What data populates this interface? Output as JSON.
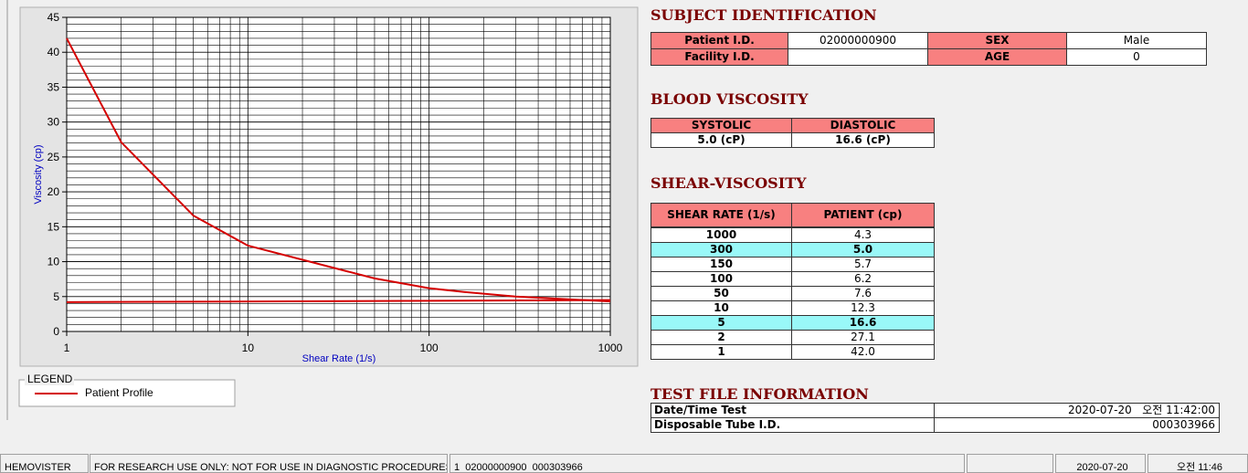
{
  "chart_data": {
    "type": "line",
    "x_label": "Shear Rate (1/s)",
    "y_label": "Viscosity (cp)",
    "x_log": true,
    "xlim": [
      1,
      1000
    ],
    "xticks": [
      1,
      10,
      100,
      1000
    ],
    "ylim": [
      0,
      45
    ],
    "yticks": [
      0,
      5,
      10,
      15,
      20,
      25,
      30,
      35,
      40,
      45
    ],
    "grid": true,
    "legend_title": "LEGEND",
    "series": [
      {
        "name": "Patient Profile",
        "color": "#d40000",
        "x": [
          1,
          2,
          5,
          10,
          50,
          100,
          150,
          300,
          1000
        ],
        "values": [
          42.0,
          27.1,
          16.6,
          12.3,
          7.6,
          6.2,
          5.7,
          5.0,
          4.3
        ]
      },
      {
        "color": "#d40000",
        "x": [
          1,
          1000
        ],
        "values": [
          4.2,
          4.5
        ]
      }
    ]
  },
  "subject_identification": {
    "title": "SUBJECT IDENTIFICATION",
    "rows": [
      [
        "Patient I.D.",
        "02000000900",
        "SEX",
        "Male"
      ],
      [
        "Facility I.D.",
        null,
        "AGE",
        "0"
      ]
    ]
  },
  "blood_viscosity": {
    "title": "BLOOD VISCOSITY",
    "header": [
      "SYSTOLIC",
      "DIASTOLIC"
    ],
    "row": [
      "5.0 (cP)",
      "16.6 (cP)"
    ]
  },
  "shear_viscosity": {
    "title": "SHEAR-VISCOSITY",
    "header": [
      "SHEAR RATE (1/s)",
      "PATIENT (cp)"
    ],
    "rows": [
      {
        "cells": [
          "1000",
          "4.3"
        ],
        "highlight": false
      },
      {
        "cells": [
          "300",
          "5.0"
        ],
        "highlight": true
      },
      {
        "cells": [
          "150",
          "5.7"
        ],
        "highlight": false
      },
      {
        "cells": [
          "100",
          "6.2"
        ],
        "highlight": false
      },
      {
        "cells": [
          "50",
          "7.6"
        ],
        "highlight": false
      },
      {
        "cells": [
          "10",
          "12.3"
        ],
        "highlight": false
      },
      {
        "cells": [
          "5",
          "16.6"
        ],
        "highlight": true
      },
      {
        "cells": [
          "2",
          "27.1"
        ],
        "highlight": false
      },
      {
        "cells": [
          "1",
          "42.0"
        ],
        "highlight": false
      }
    ]
  },
  "test_file": {
    "title": "TEST FILE INFORMATION",
    "rows": [
      [
        "Date/Time Test",
        "2020-07-20   오전 11:42:00"
      ],
      [
        "Disposable Tube I.D.",
        "000303966"
      ]
    ]
  },
  "status_bar": [
    "HEMOVISTER",
    "FOR RESEARCH USE ONLY: NOT FOR USE IN DIAGNOSTIC PROCEDURES",
    "1  02000000900  000303966",
    "2020-07-20",
    "오전 11:46"
  ]
}
